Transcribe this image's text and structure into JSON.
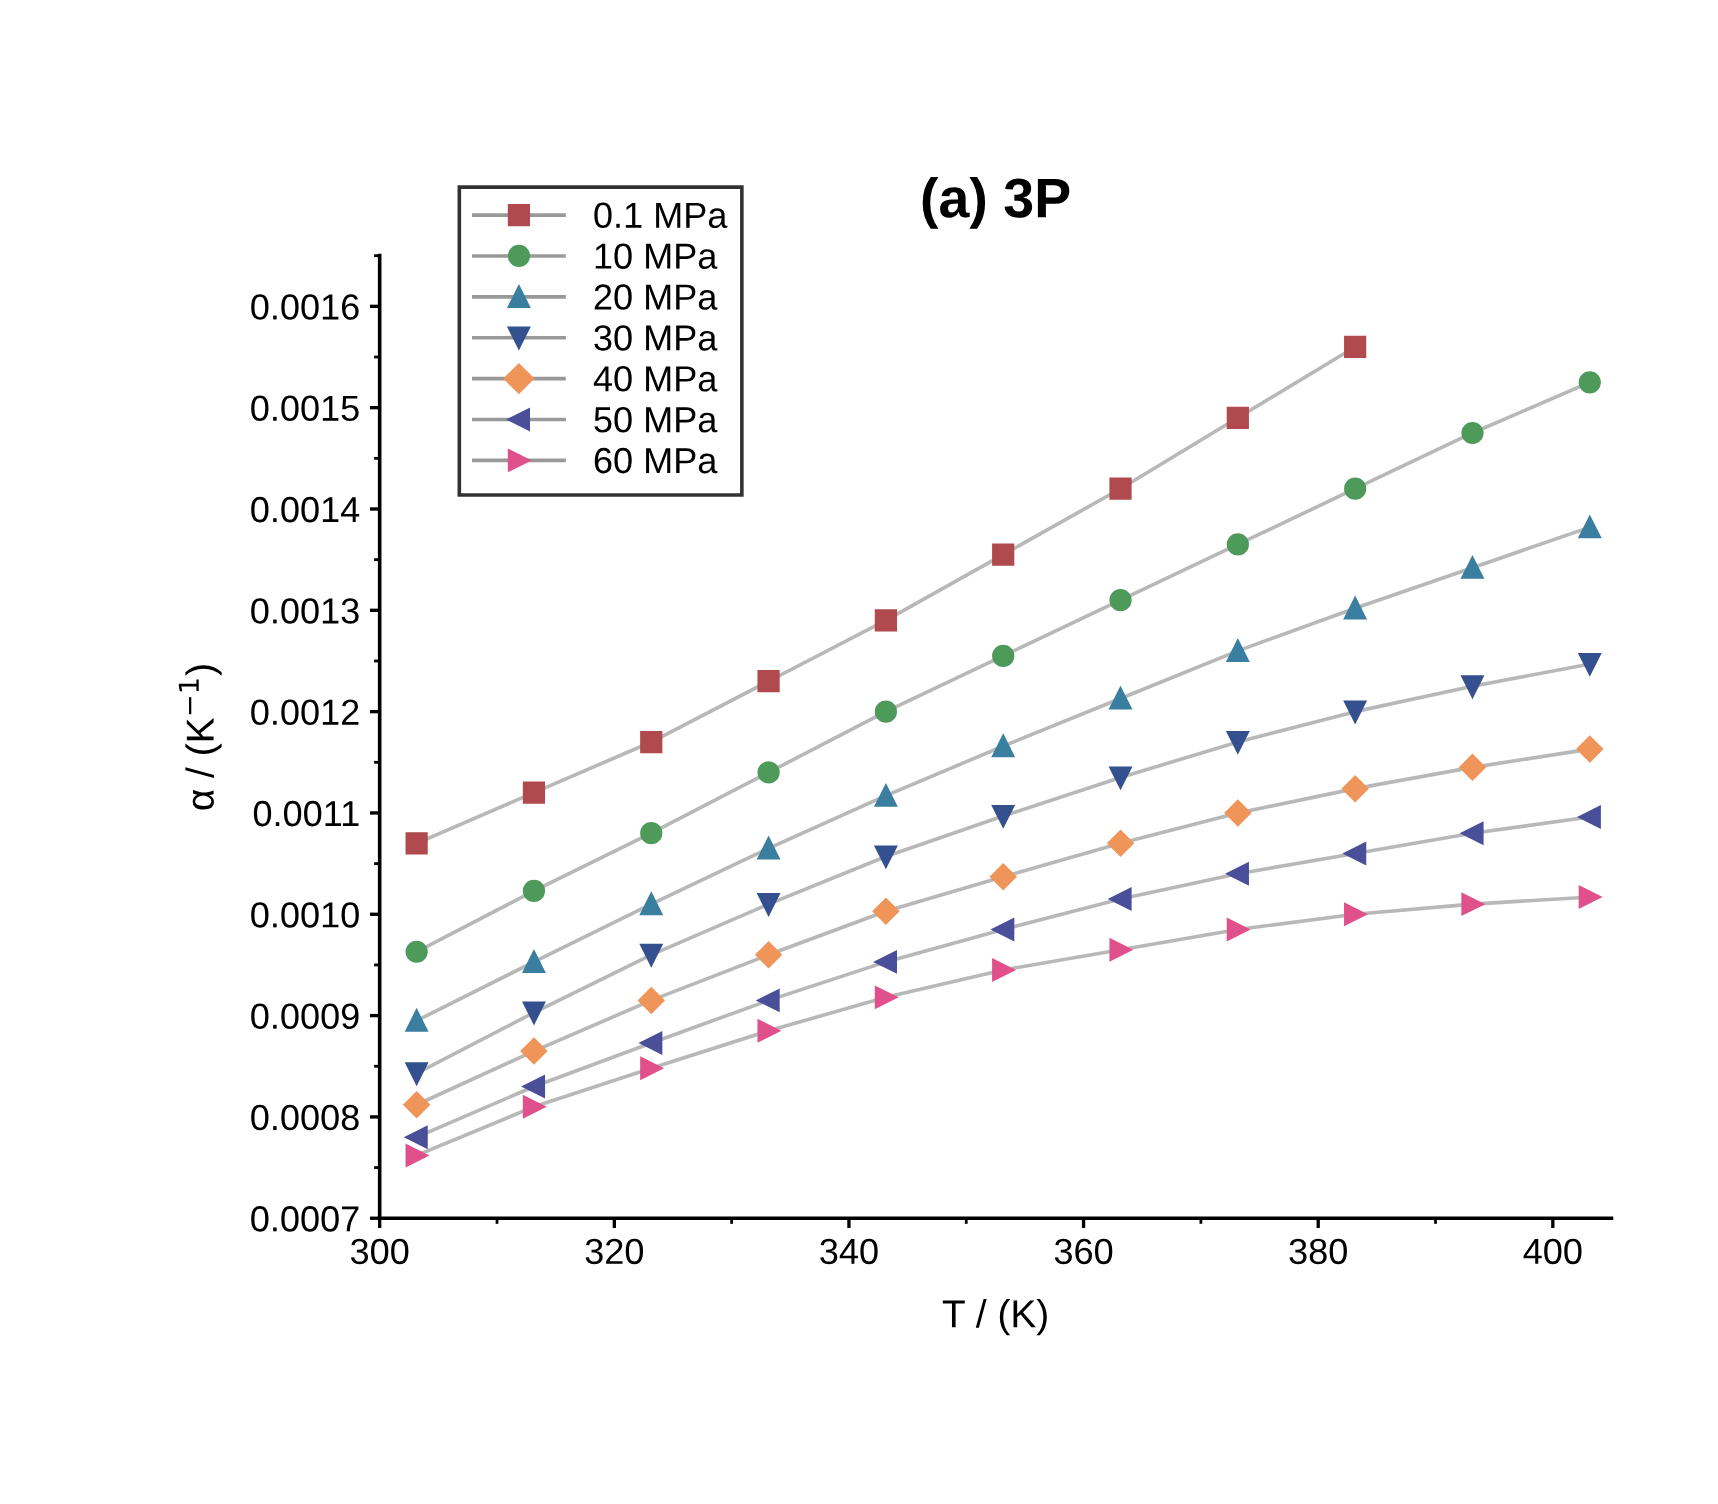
{
  "chart_data": {
    "type": "line",
    "title": "(a) 3P",
    "xlabel": "T / (K)",
    "ylabel": "α / (K$^{−1}$)",
    "x": [
      303.15,
      313.15,
      323.15,
      333.15,
      343.15,
      353.15,
      363.15,
      373.15,
      383.15,
      393.15,
      403.15
    ],
    "series": [
      {
        "name": "0.1 MPa",
        "color": "#b04a4f",
        "marker": "square",
        "values": [
          0.00107,
          0.00112,
          0.00117,
          0.00123,
          0.00129,
          0.001355,
          0.00142,
          0.00149,
          0.00156,
          null,
          null
        ]
      },
      {
        "name": "10 MPa",
        "color": "#4e9a5a",
        "marker": "circle",
        "values": [
          0.000963,
          0.001023,
          0.00108,
          0.00114,
          0.0012,
          0.001255,
          0.00131,
          0.001365,
          0.00142,
          0.001475,
          0.001525
        ]
      },
      {
        "name": "20 MPa",
        "color": "#3a7fa0",
        "marker": "triangle",
        "values": [
          0.000895,
          0.000953,
          0.00101,
          0.001065,
          0.001117,
          0.001166,
          0.001213,
          0.00126,
          0.001302,
          0.001342,
          0.001382
        ]
      },
      {
        "name": "30 MPa",
        "color": "#34508f",
        "marker": "triangle_down",
        "values": [
          0.000843,
          0.000903,
          0.00096,
          0.00101,
          0.001057,
          0.001097,
          0.001135,
          0.00117,
          0.0012,
          0.001225,
          0.001247
        ]
      },
      {
        "name": "40 MPa",
        "color": "#f0955a",
        "marker": "diamond",
        "values": [
          0.000812,
          0.000865,
          0.000915,
          0.00096,
          0.001003,
          0.001037,
          0.00107,
          0.0011,
          0.001124,
          0.001145,
          0.001163
        ]
      },
      {
        "name": "50 MPa",
        "color": "#4a4f9a",
        "marker": "triangle_left",
        "values": [
          0.00078,
          0.00083,
          0.000873,
          0.000915,
          0.000953,
          0.000985,
          0.001015,
          0.00104,
          0.00106,
          0.00108,
          0.001096
        ]
      },
      {
        "name": "60 MPa",
        "color": "#e0508a",
        "marker": "triangle_right",
        "values": [
          0.000762,
          0.00081,
          0.000848,
          0.000885,
          0.000918,
          0.000945,
          0.000965,
          0.000985,
          0.001,
          0.00101,
          0.001017
        ]
      }
    ],
    "xlim": [
      300,
      405
    ],
    "xticks": [
      300,
      320,
      340,
      360,
      380,
      400
    ],
    "ylim": [
      0.0007,
      0.00165
    ],
    "yticks": [
      {
        "value": 0.0007,
        "label": "0.0007"
      },
      {
        "value": 0.0008,
        "label": "0.0008"
      },
      {
        "value": 0.0009,
        "label": "0.0009"
      },
      {
        "value": 0.001,
        "label": "0.0010"
      },
      {
        "value": 0.0011,
        "label": "0.0011"
      },
      {
        "value": 0.0012,
        "label": "0.0012"
      },
      {
        "value": 0.0013,
        "label": "0.0013"
      },
      {
        "value": 0.0014,
        "label": "0.0014"
      },
      {
        "value": 0.0015,
        "label": "0.0015"
      },
      {
        "value": 0.0016,
        "label": "0.0016"
      }
    ],
    "legend": "top left",
    "grid": false,
    "line_style": "solid"
  }
}
